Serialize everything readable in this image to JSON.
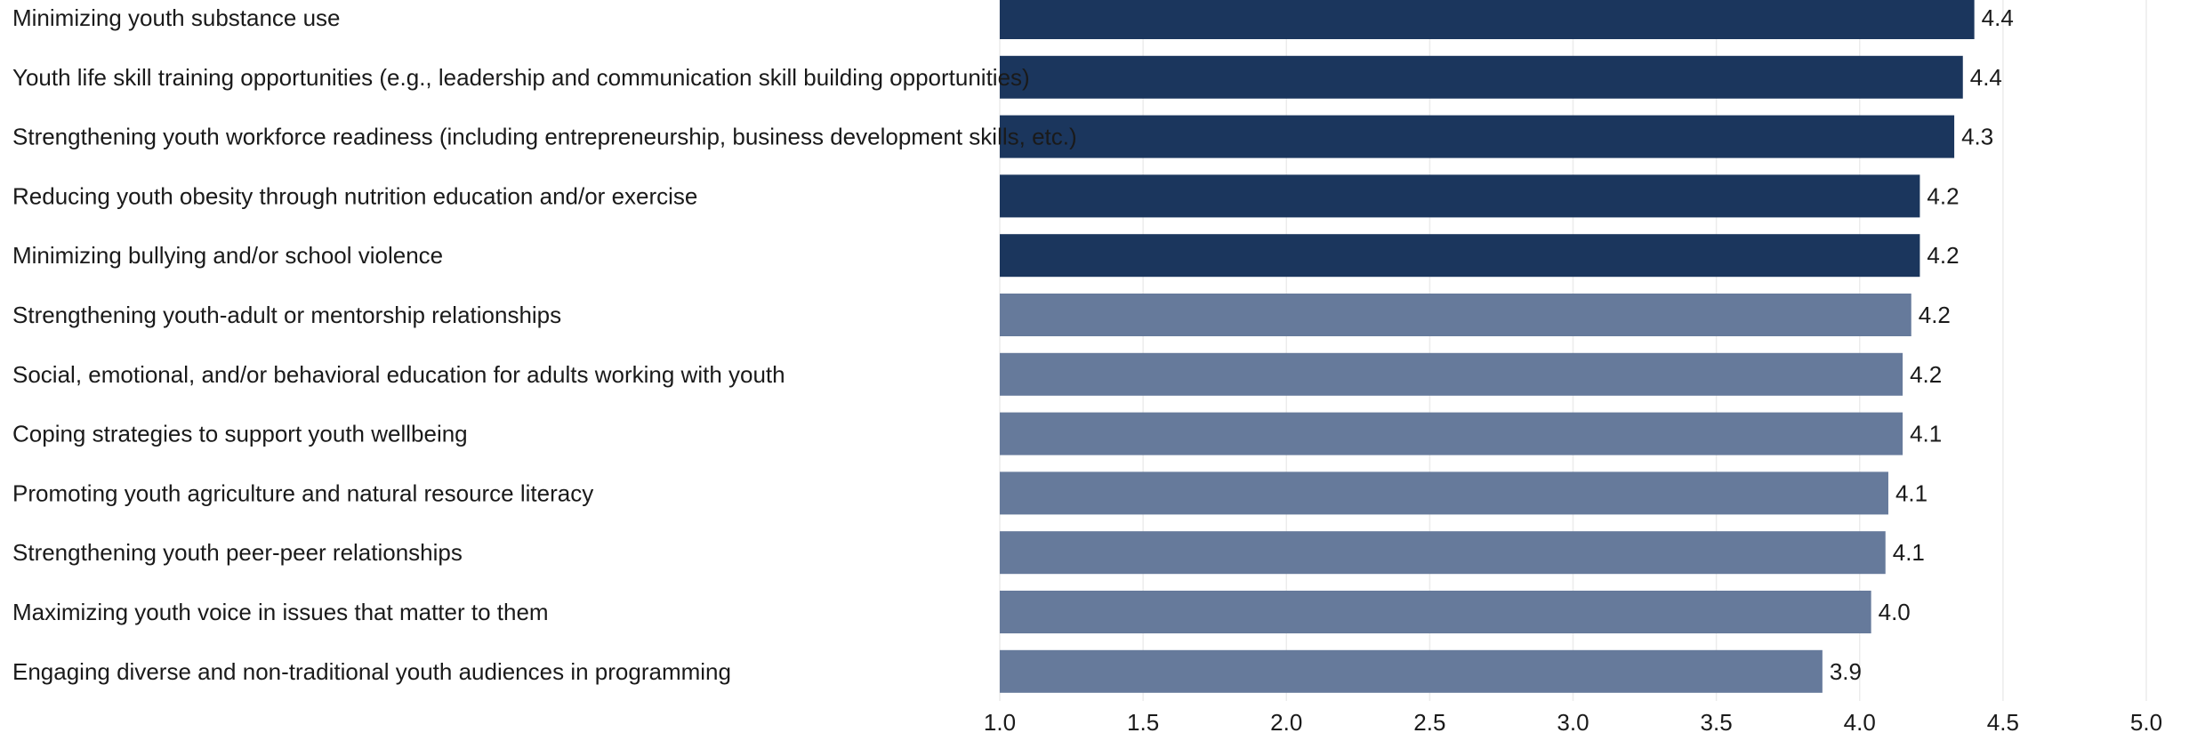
{
  "chart_data": {
    "type": "bar",
    "orientation": "horizontal",
    "categories": [
      "Minimizing youth substance use",
      "Youth life skill training opportunities (e.g., leadership and communication skill building opportunities)",
      "Strengthening youth workforce readiness (including entrepreneurship, business development skills, etc.)",
      "Reducing youth obesity through nutrition education and/or exercise",
      "Minimizing bullying and/or school violence",
      "Strengthening youth-adult or mentorship relationships",
      "Social, emotional, and/or behavioral education for adults working with youth",
      "Coping strategies to support youth wellbeing",
      "Promoting youth agriculture and natural resource literacy",
      "Strengthening youth peer-peer relationships",
      "Maximizing youth voice in issues that matter to them",
      "Engaging diverse and non-traditional youth audiences in programming"
    ],
    "values": [
      4.4,
      4.36,
      4.33,
      4.21,
      4.21,
      4.18,
      4.15,
      4.15,
      4.1,
      4.09,
      4.04,
      3.87
    ],
    "value_labels": [
      "4.4",
      "4.4",
      "4.3",
      "4.2",
      "4.2",
      "4.2",
      "4.2",
      "4.1",
      "4.1",
      "4.1",
      "4.0",
      "3.9"
    ],
    "bar_colors": [
      "#1b365d",
      "#1b365d",
      "#1b365d",
      "#1b365d",
      "#1b365d",
      "#667a9b",
      "#667a9b",
      "#667a9b",
      "#667a9b",
      "#667a9b",
      "#667a9b",
      "#667a9b"
    ],
    "xlim": [
      1.0,
      5.0
    ],
    "xticks": [
      "1.0",
      "1.5",
      "2.0",
      "2.5",
      "3.0",
      "3.5",
      "4.0",
      "4.5",
      "5.0"
    ],
    "grid": "vertical",
    "title": "",
    "xlabel": "",
    "ylabel": ""
  }
}
